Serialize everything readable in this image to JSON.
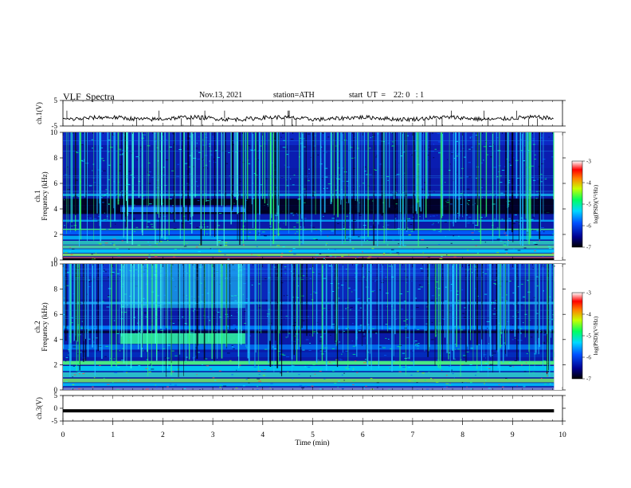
{
  "header": {
    "title": "VLF  Spectra",
    "date": "Nov.13, 2021",
    "station": "station=ATH",
    "start_ut": "start  UT  =    22: 0   : 1"
  },
  "chart_data": [
    {
      "id": "ch1-waveform",
      "type": "line",
      "ylabel": "ch.1(V)",
      "ylim": [
        -5,
        5
      ],
      "yticks": [
        "5",
        "-5"
      ],
      "xlim": [
        0,
        10
      ],
      "series": [
        {
          "color": "#000000",
          "approx_level": -2.0
        }
      ]
    },
    {
      "id": "ch1-spectrogram",
      "type": "heatmap",
      "ylabel_line1": "ch.1",
      "ylabel_line2": "Frequency (kHz)",
      "ylim": [
        0,
        10
      ],
      "yticks": [
        "0",
        "2",
        "4",
        "6",
        "8",
        "10"
      ],
      "xlim": [
        0,
        10
      ],
      "data_end_min": 9.83,
      "colorbar": {
        "label": "log(PSD)(V²/Hz)",
        "range": [
          -7,
          -3
        ],
        "ticks": [
          "-3",
          "-4",
          "-5",
          "-6",
          "-7"
        ]
      },
      "features": {
        "burst_start_min": 1.15,
        "burst_end_min": 3.65,
        "burst_freq_khz": 4.0,
        "strong_low_band_khz": [
          0.2,
          2.4
        ]
      }
    },
    {
      "id": "ch2-spectrogram",
      "type": "heatmap",
      "ylabel_line1": "ch.2",
      "ylabel_line2": "Frequency (kHz)",
      "ylim": [
        0,
        10
      ],
      "yticks": [
        "0",
        "2",
        "4",
        "6",
        "8",
        "10"
      ],
      "xlim": [
        0,
        10
      ],
      "data_end_min": 9.83,
      "colorbar": {
        "label": "log(PSD)(V²/Hz)",
        "range": [
          -7,
          -3
        ],
        "ticks": [
          "-3",
          "-4",
          "-5",
          "-6",
          "-7"
        ]
      },
      "features": {
        "burst_start_min": 1.15,
        "burst_end_min": 3.65,
        "burst_freq_khz": 4.0,
        "strong_low_band_khz": [
          0.2,
          2.4
        ]
      }
    },
    {
      "id": "ch3-waveform",
      "type": "line",
      "ylabel": "ch.3(V)",
      "ylim": [
        -5,
        5
      ],
      "yticks": [
        "5",
        "0",
        "-5"
      ],
      "xlim": [
        0,
        10
      ],
      "xticks": [
        "0",
        "1",
        "2",
        "3",
        "4",
        "5",
        "6",
        "7",
        "8",
        "9",
        "10"
      ],
      "xlabel": "Time  (min)",
      "series": [
        {
          "color": "#000000",
          "approx_level": -1.0
        }
      ]
    }
  ]
}
